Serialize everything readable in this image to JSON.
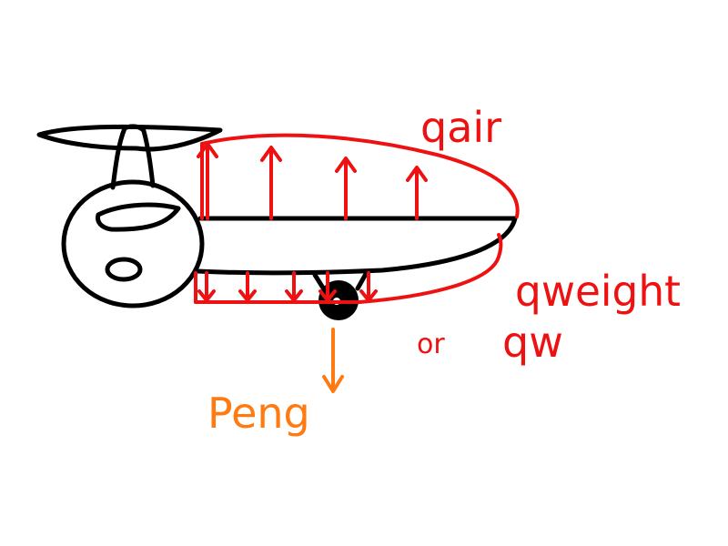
{
  "labels": {
    "air_load": "qair",
    "weight_load": "qweight",
    "or_word": "or",
    "weight_short": "qw",
    "engine_load": "Peng"
  },
  "colors": {
    "airframe": "#000000",
    "distributed_load": "#ee1111",
    "engine_load": "#ff7a10",
    "background": "#ffffff"
  },
  "load_arrows": {
    "air_count": 4,
    "weight_count": 5,
    "engine_count": 1
  }
}
